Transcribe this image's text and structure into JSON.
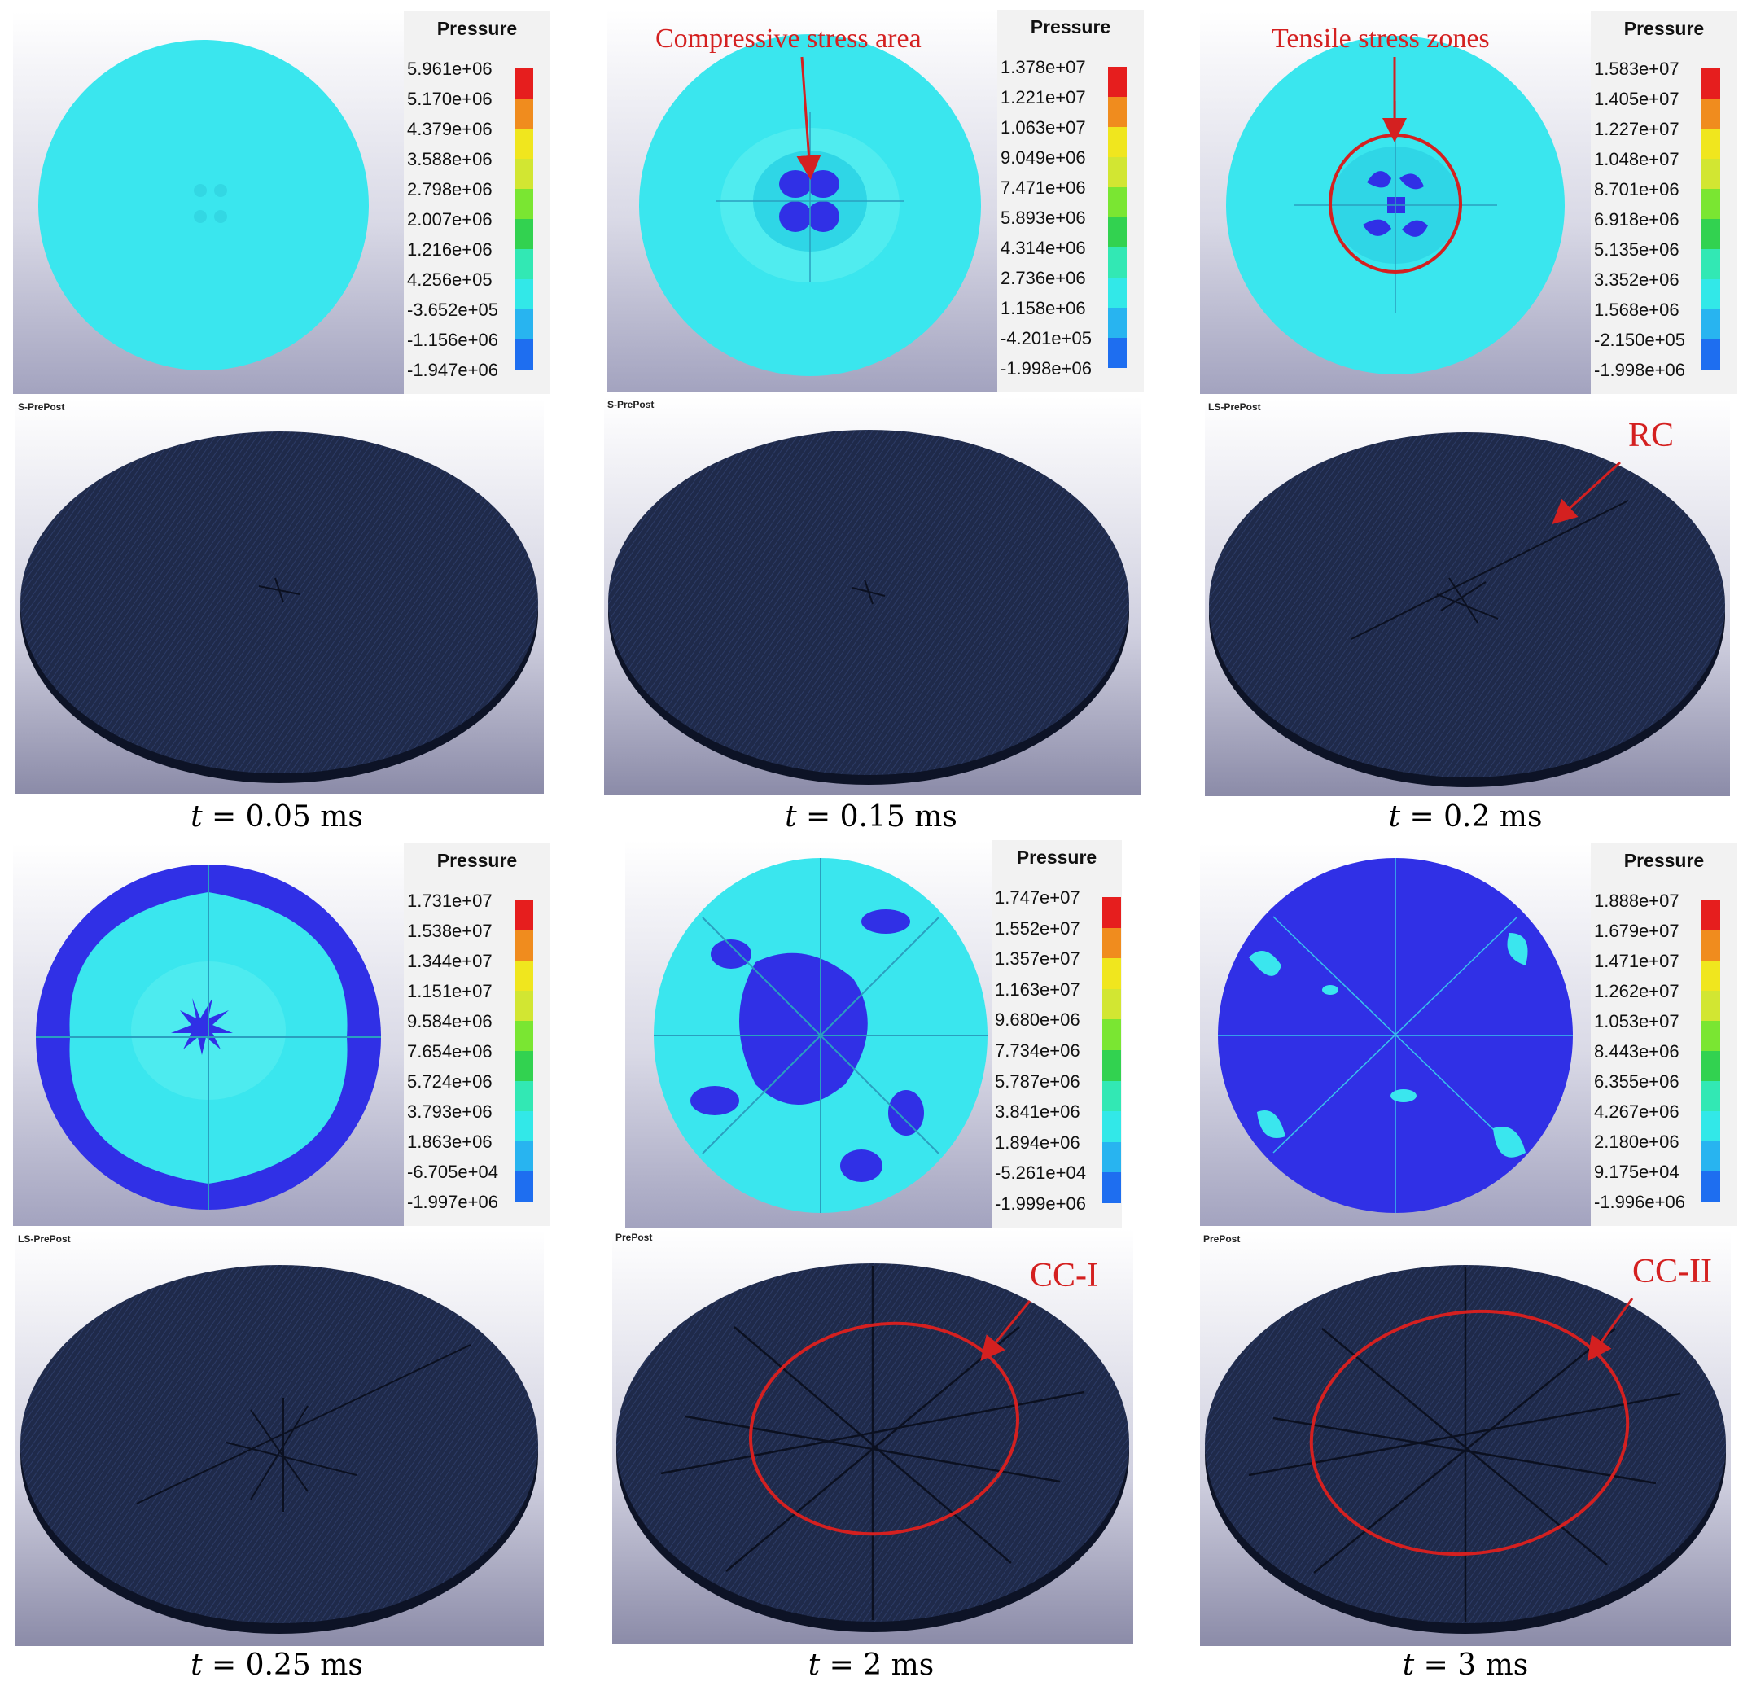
{
  "legend_title": "Pressure",
  "software_label": "LS-PrePost",
  "colors": {
    "scale": [
      "#1e1ee0",
      "#1e6ef0",
      "#28b4f0",
      "#32e8e8",
      "#32e8b4",
      "#32d250",
      "#7ae632",
      "#d2e632",
      "#f0e61e",
      "#f08c1e",
      "#e61e1e"
    ],
    "fringe_cyan": "#3ae6ee",
    "fringe_blue": "#3030e6",
    "mesh": "#1f2a4a",
    "annotation": "#d42020"
  },
  "panels": [
    {
      "time_var": "t",
      "time_eq": "= 0.05 ms",
      "ticks": [
        "5.961e+06",
        "5.170e+06",
        "4.379e+06",
        "3.588e+06",
        "2.798e+06",
        "2.007e+06",
        "1.216e+06",
        "4.256e+05",
        "-3.652e+05",
        "-1.156e+06",
        "-1.947e+06"
      ],
      "software_label": "S-PrePost",
      "annotation": ""
    },
    {
      "time_var": "t",
      "time_eq": "= 0.15 ms",
      "ticks": [
        "1.378e+07",
        "1.221e+07",
        "1.063e+07",
        "9.049e+06",
        "7.471e+06",
        "5.893e+06",
        "4.314e+06",
        "2.736e+06",
        "1.158e+06",
        "-4.201e+05",
        "-1.998e+06"
      ],
      "software_label": "S-PrePost",
      "annotation": "Compressive stress area"
    },
    {
      "time_var": "t",
      "time_eq": "= 0.2 ms",
      "ticks": [
        "1.583e+07",
        "1.405e+07",
        "1.227e+07",
        "1.048e+07",
        "8.701e+06",
        "6.918e+06",
        "5.135e+06",
        "3.352e+06",
        "1.568e+06",
        "-2.150e+05",
        "-1.998e+06"
      ],
      "software_label": "LS-PrePost",
      "annotation": "Tensile stress zones",
      "mesh_annotation": "RC"
    },
    {
      "time_var": "t",
      "time_eq": "= 0.25 ms",
      "ticks": [
        "1.731e+07",
        "1.538e+07",
        "1.344e+07",
        "1.151e+07",
        "9.584e+06",
        "7.654e+06",
        "5.724e+06",
        "3.793e+06",
        "1.863e+06",
        "-6.705e+04",
        "-1.997e+06"
      ],
      "software_label": "LS-PrePost",
      "annotation": ""
    },
    {
      "time_var": "t",
      "time_eq": "= 2 ms",
      "ticks": [
        "1.747e+07",
        "1.552e+07",
        "1.357e+07",
        "1.163e+07",
        "9.680e+06",
        "7.734e+06",
        "5.787e+06",
        "3.841e+06",
        "1.894e+06",
        "-5.261e+04",
        "-1.999e+06"
      ],
      "software_label": "PrePost",
      "annotation": "",
      "mesh_annotation": "CC-I"
    },
    {
      "time_var": "t",
      "time_eq": "= 3 ms",
      "ticks": [
        "1.888e+07",
        "1.679e+07",
        "1.471e+07",
        "1.262e+07",
        "1.053e+07",
        "8.443e+06",
        "6.355e+06",
        "4.267e+06",
        "2.180e+06",
        "9.175e+04",
        "-1.996e+06"
      ],
      "software_label": "PrePost",
      "annotation": "",
      "mesh_annotation": "CC-II"
    }
  ]
}
